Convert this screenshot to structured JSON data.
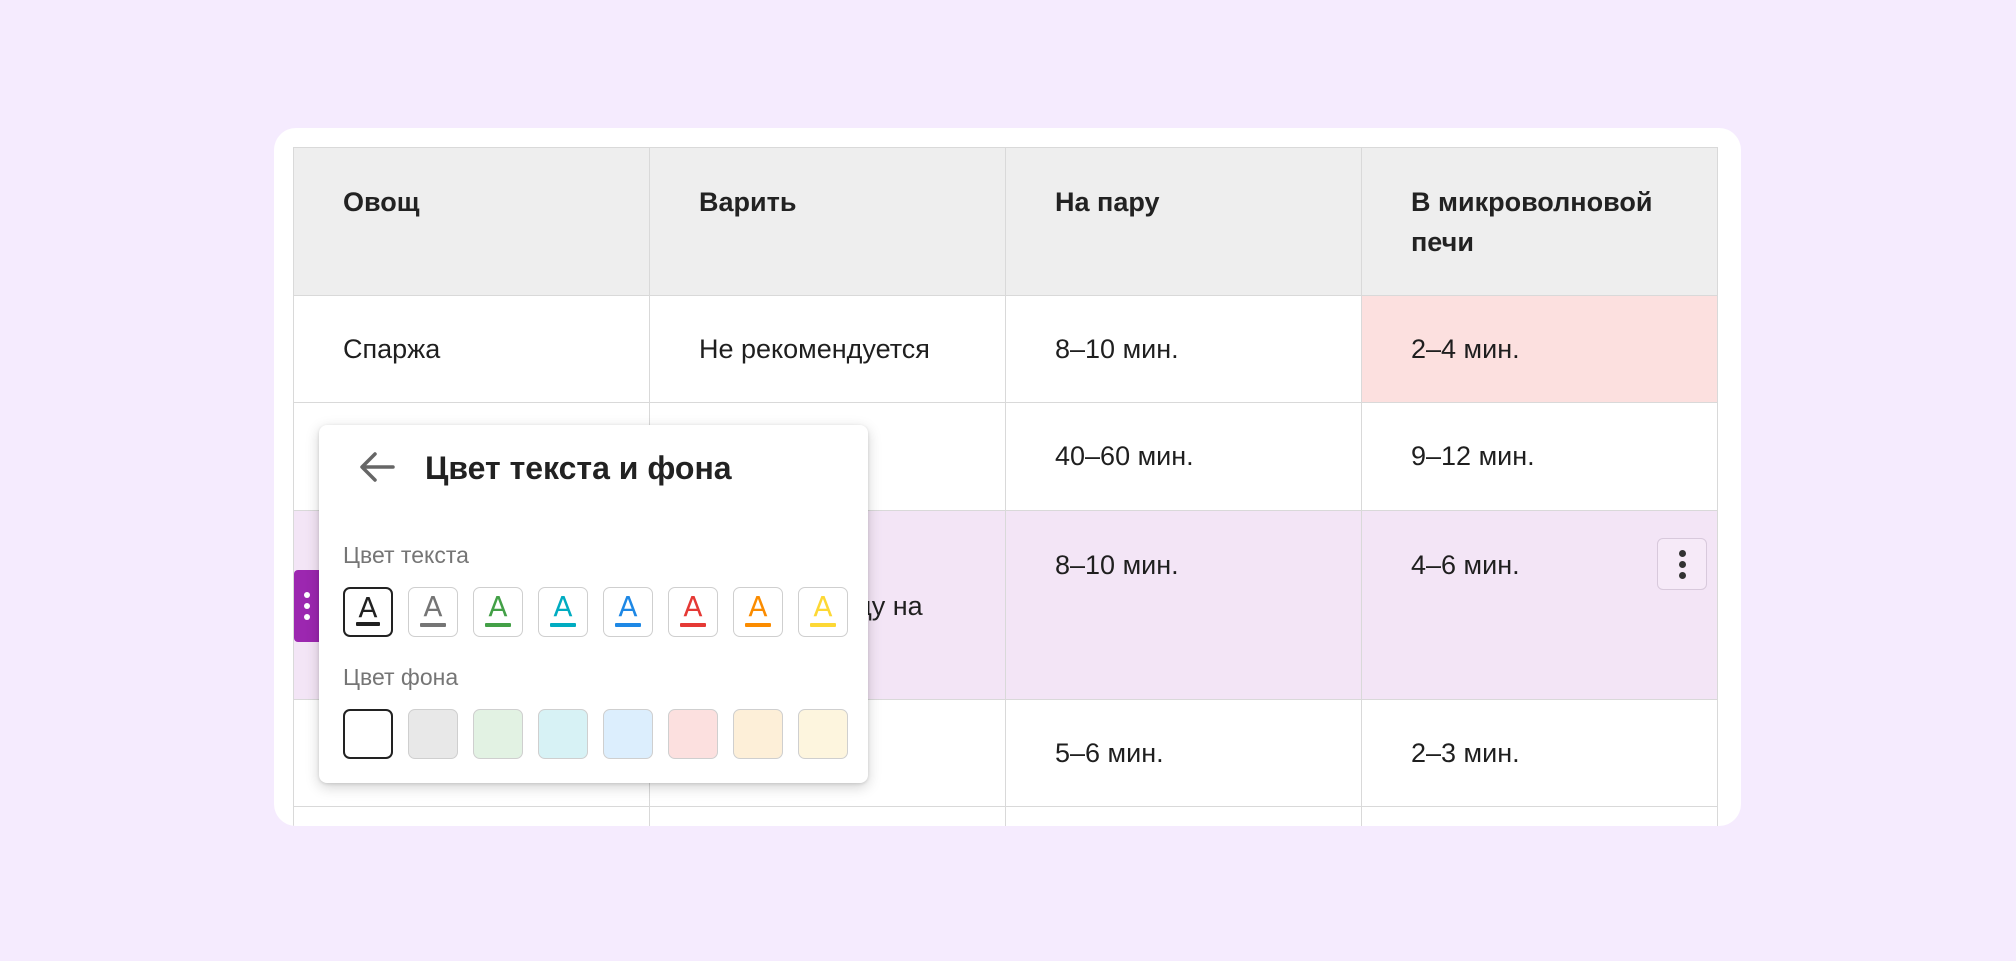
{
  "table": {
    "headers": [
      "Овощ",
      "Варить",
      "На пару",
      "В микроволновой печи"
    ],
    "rows": [
      [
        "Спаржа",
        "Не рекомендуется",
        "8–10 мин.",
        "2–4 мин."
      ],
      [
        "",
        "",
        "40–60 мин.",
        "9–12 мин."
      ],
      [
        "",
        "ду на",
        "8–10 мин.",
        "4–6 мин."
      ],
      [
        "",
        "",
        "5–6 мин.",
        "2–3 мин."
      ]
    ],
    "highlight_color": "#fce0df",
    "selected_row_color": "#f3e5f6"
  },
  "popup": {
    "title": "Цвет текста и фона",
    "text_color_label": "Цвет текста",
    "bg_color_label": "Цвет фона",
    "glyph": "A",
    "text_colors": [
      "#212121",
      "#757575",
      "#43a047",
      "#00acc1",
      "#1e88e5",
      "#e53935",
      "#fb8c00",
      "#fdd835"
    ],
    "bg_colors": [
      "#ffffff",
      "#e8e8e8",
      "#e2f2e3",
      "#d7f2f5",
      "#dceefd",
      "#fce0df",
      "#fdefd8",
      "#fdf5de"
    ],
    "selected_text_index": 0,
    "selected_bg_index": 0,
    "back_icon": "arrow-left-icon"
  },
  "row_menu_icon": "more-vert-icon",
  "drag_handle_icon": "drag-handle-icon",
  "accent_color": "#9c27b0"
}
